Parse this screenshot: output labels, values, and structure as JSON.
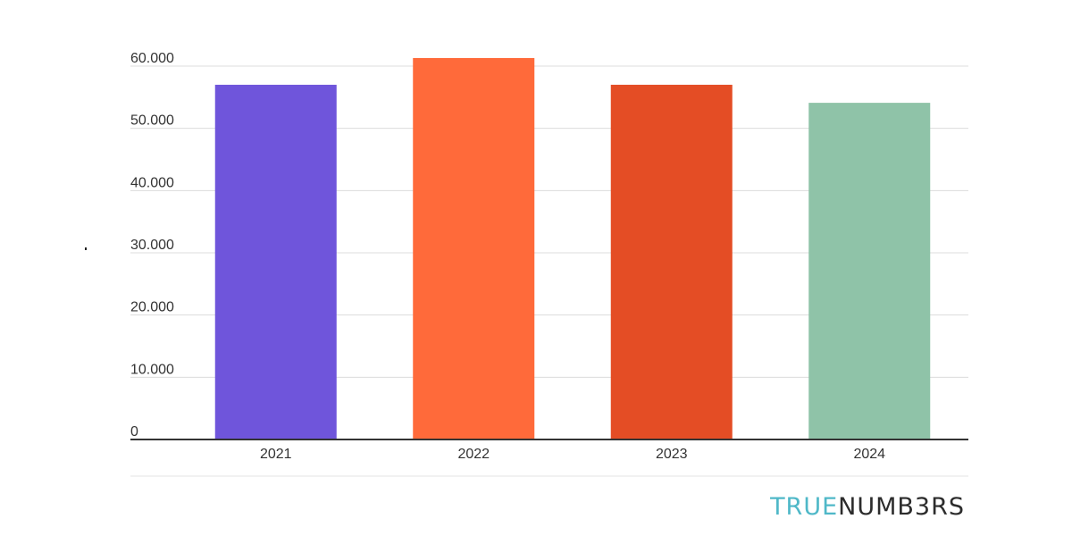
{
  "chart_data": {
    "type": "bar",
    "categories": [
      "2021",
      "2022",
      "2023",
      "2024"
    ],
    "values": [
      57000,
      61300,
      57000,
      54100
    ],
    "colors": [
      "#6f55db",
      "#ff6a3a",
      "#e44d25",
      "#8fc3a8"
    ],
    "ylim": [
      0,
      60000
    ],
    "yticks": [
      0,
      10000,
      20000,
      30000,
      40000,
      50000,
      60000
    ],
    "ytick_labels": [
      "0",
      "10.000",
      "20.000",
      "30.000",
      "40.000",
      "50.000",
      "60.000"
    ],
    "grid": true,
    "legend": "none"
  },
  "branding": {
    "logo_part1": "TRUE",
    "logo_part2": "NUMB3RS",
    "logo_color1": "#4fb8c8",
    "logo_color2": "#2c2c2c"
  }
}
